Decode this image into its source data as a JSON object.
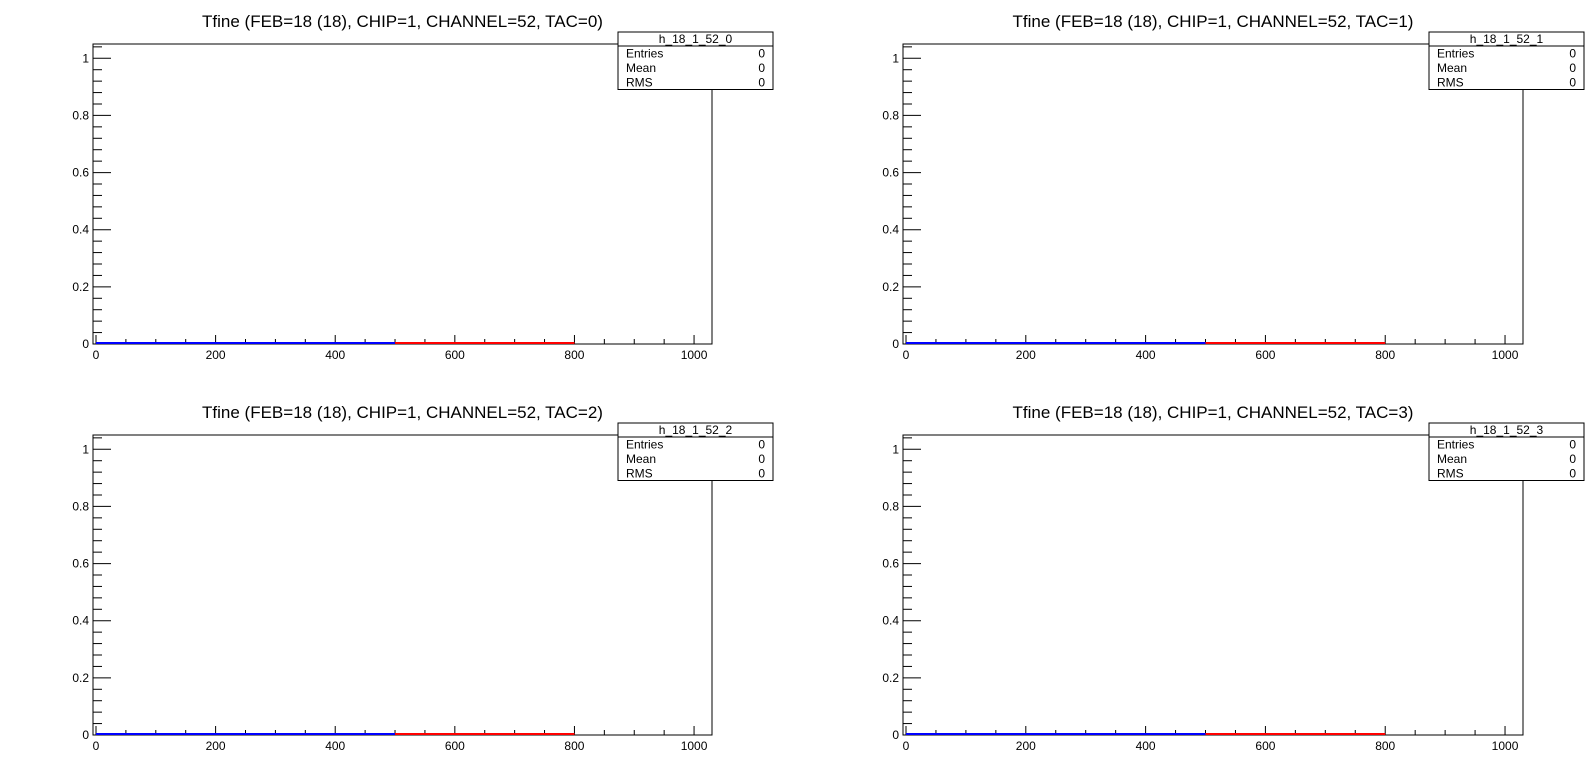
{
  "colors": {
    "frame": "#000000",
    "series_low": "#0000ff",
    "series_high": "#ff0000"
  },
  "chart_data": [
    {
      "type": "line",
      "title": "Tfine (FEB=18 (18), CHIP=1, CHANNEL=52, TAC=0)",
      "xlim": [
        -5,
        1030
      ],
      "ylim": [
        0,
        1.05
      ],
      "x_ticks": [
        0,
        200,
        400,
        600,
        800,
        1000
      ],
      "y_ticks": [
        0,
        0.2,
        0.4,
        0.6,
        0.8,
        1
      ],
      "grid": false,
      "series": [
        {
          "color": "#0000ff",
          "x": [
            0,
            500
          ],
          "y": [
            0,
            0
          ]
        },
        {
          "color": "#ff0000",
          "x": [
            500,
            800
          ],
          "y": [
            0,
            0
          ]
        }
      ],
      "stats": {
        "name": "h_18_1_52_0",
        "rows": [
          {
            "label": "Entries",
            "value": "0"
          },
          {
            "label": "Mean",
            "value": "0"
          },
          {
            "label": "RMS",
            "value": "0"
          }
        ]
      }
    },
    {
      "type": "line",
      "title": "Tfine (FEB=18 (18), CHIP=1, CHANNEL=52, TAC=1)",
      "xlim": [
        -5,
        1030
      ],
      "ylim": [
        0,
        1.05
      ],
      "x_ticks": [
        0,
        200,
        400,
        600,
        800,
        1000
      ],
      "y_ticks": [
        0,
        0.2,
        0.4,
        0.6,
        0.8,
        1
      ],
      "grid": false,
      "series": [
        {
          "color": "#0000ff",
          "x": [
            0,
            500
          ],
          "y": [
            0,
            0
          ]
        },
        {
          "color": "#ff0000",
          "x": [
            500,
            800
          ],
          "y": [
            0,
            0
          ]
        }
      ],
      "stats": {
        "name": "h_18_1_52_1",
        "rows": [
          {
            "label": "Entries",
            "value": "0"
          },
          {
            "label": "Mean",
            "value": "0"
          },
          {
            "label": "RMS",
            "value": "0"
          }
        ]
      }
    },
    {
      "type": "line",
      "title": "Tfine (FEB=18 (18), CHIP=1, CHANNEL=52, TAC=2)",
      "xlim": [
        -5,
        1030
      ],
      "ylim": [
        0,
        1.05
      ],
      "x_ticks": [
        0,
        200,
        400,
        600,
        800,
        1000
      ],
      "y_ticks": [
        0,
        0.2,
        0.4,
        0.6,
        0.8,
        1
      ],
      "grid": false,
      "series": [
        {
          "color": "#0000ff",
          "x": [
            0,
            500
          ],
          "y": [
            0,
            0
          ]
        },
        {
          "color": "#ff0000",
          "x": [
            500,
            800
          ],
          "y": [
            0,
            0
          ]
        }
      ],
      "stats": {
        "name": "h_18_1_52_2",
        "rows": [
          {
            "label": "Entries",
            "value": "0"
          },
          {
            "label": "Mean",
            "value": "0"
          },
          {
            "label": "RMS",
            "value": "0"
          }
        ]
      }
    },
    {
      "type": "line",
      "title": "Tfine (FEB=18 (18), CHIP=1, CHANNEL=52, TAC=3)",
      "xlim": [
        -5,
        1030
      ],
      "ylim": [
        0,
        1.05
      ],
      "x_ticks": [
        0,
        200,
        400,
        600,
        800,
        1000
      ],
      "y_ticks": [
        0,
        0.2,
        0.4,
        0.6,
        0.8,
        1
      ],
      "grid": false,
      "series": [
        {
          "color": "#0000ff",
          "x": [
            0,
            500
          ],
          "y": [
            0,
            0
          ]
        },
        {
          "color": "#ff0000",
          "x": [
            500,
            800
          ],
          "y": [
            0,
            0
          ]
        }
      ],
      "stats": {
        "name": "h_18_1_52_3",
        "rows": [
          {
            "label": "Entries",
            "value": "0"
          },
          {
            "label": "Mean",
            "value": "0"
          },
          {
            "label": "RMS",
            "value": "0"
          }
        ]
      }
    }
  ]
}
